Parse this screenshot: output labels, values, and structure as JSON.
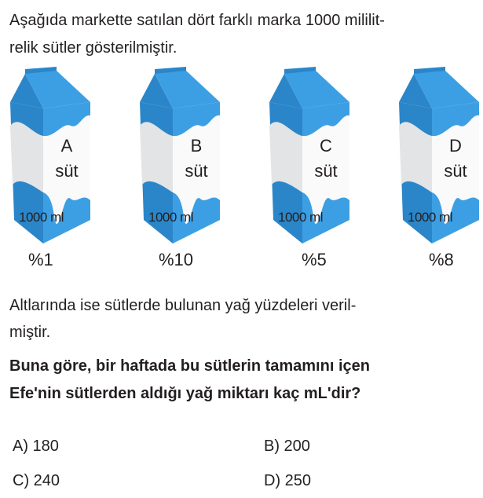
{
  "intro": [
    "Aşağıda markette satılan dört farklı marka 1000 mililit-",
    "relik sütler gösterilmiştir."
  ],
  "cartons": [
    {
      "letter": "A",
      "word": "süt",
      "volume": "1000 ml",
      "fat": "%1"
    },
    {
      "letter": "B",
      "word": "süt",
      "volume": "1000 ml",
      "fat": "%10"
    },
    {
      "letter": "C",
      "word": "süt",
      "volume": "1000 ml",
      "fat": "%5"
    },
    {
      "letter": "D",
      "word": "süt",
      "volume": "1000 ml",
      "fat": "%8"
    }
  ],
  "note": [
    "Altlarında ise sütlerde bulunan yağ yüzdeleri veril-",
    "miştir."
  ],
  "question": [
    "Buna göre, bir haftada bu sütlerin tamamını içen",
    "Efe'nin sütlerden aldığı yağ miktarı kaç mL'dir?"
  ],
  "options": [
    {
      "label": "A) 180"
    },
    {
      "label": "B) 200"
    },
    {
      "label": "C) 240"
    },
    {
      "label": "D) 250"
    }
  ],
  "colors": {
    "carton_blue": "#3d9fe3",
    "carton_dark": "#2b86c9",
    "text": "#231f20"
  }
}
